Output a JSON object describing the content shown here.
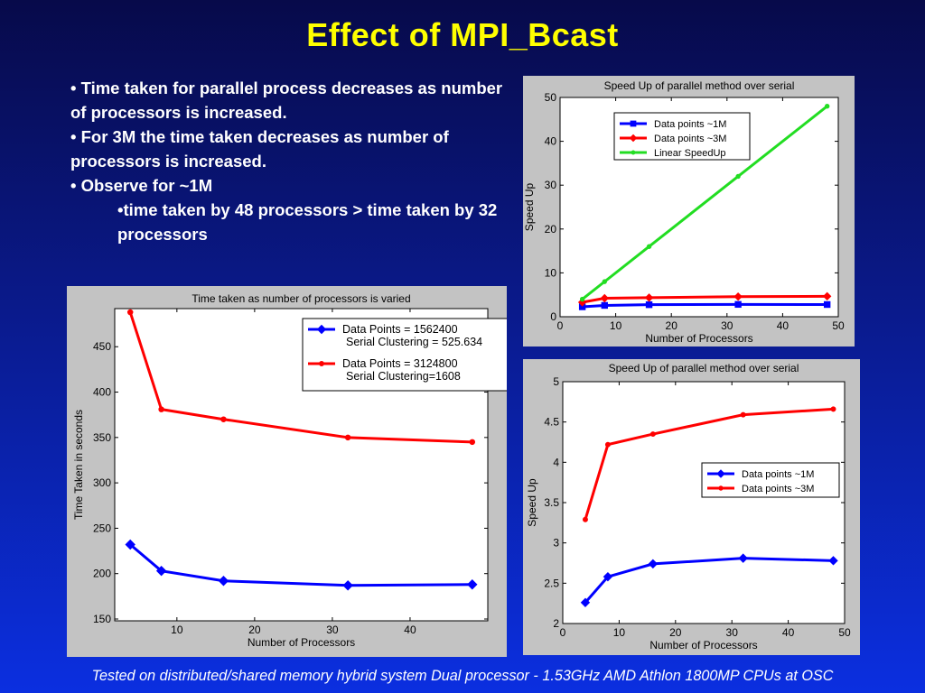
{
  "slide": {
    "title": "Effect of MPI_Bcast",
    "bullets": [
      "• Time taken for parallel process decreases as number of processors is increased.",
      "• For 3M the time taken decreases as number of processors is increased.",
      "• Observe for ~1M"
    ],
    "sub_bullet": "•time taken by 48 processors > time taken by 32 processors",
    "footer": "Tested on distributed/shared memory hybrid system Dual processor - 1.53GHz AMD Athlon 1800MP CPUs at OSC"
  },
  "chart_data": [
    {
      "id": "time-chart",
      "type": "line",
      "title": "Time taken as number of processors is varied",
      "xlabel": "Number of Processors",
      "ylabel": "Time Taken in seconds",
      "xlim": [
        2,
        50
      ],
      "ylim": [
        148,
        492
      ],
      "xticks": [
        10,
        20,
        30,
        40
      ],
      "yticks": [
        150,
        200,
        250,
        300,
        350,
        400,
        450
      ],
      "grid": false,
      "legend_position": "top-right",
      "legend": [
        {
          "series": 0,
          "lines": [
            "Data Points = 1562400",
            "Serial Clustering = 525.634"
          ]
        },
        {
          "series": 1,
          "lines": [
            "Data Points = 3124800",
            "Serial Clustering=1608"
          ]
        }
      ],
      "series": [
        {
          "name": "Data Points = 1562400",
          "color": "#0000ff",
          "marker": "diamond",
          "x": [
            4,
            8,
            16,
            32,
            48
          ],
          "y": [
            232,
            203,
            192,
            187,
            188
          ]
        },
        {
          "name": "Data Points = 3124800",
          "color": "#ff0000",
          "marker": "dot",
          "x": [
            4,
            8,
            16,
            32,
            48
          ],
          "y": [
            488,
            381,
            370,
            350,
            345
          ]
        }
      ]
    },
    {
      "id": "speedup-linear-chart",
      "type": "line",
      "title": "Speed Up of parallel method over serial",
      "xlabel": "Number of Processors",
      "ylabel": "Speed Up",
      "xlim": [
        0,
        50
      ],
      "ylim": [
        0,
        50
      ],
      "xticks": [
        0,
        10,
        20,
        30,
        40,
        50
      ],
      "yticks": [
        0,
        10,
        20,
        30,
        40,
        50
      ],
      "grid": false,
      "legend_position": "top-left",
      "legend": [
        {
          "series": 0,
          "lines": [
            "Data points ~1M"
          ]
        },
        {
          "series": 1,
          "lines": [
            "Data points ~3M"
          ]
        },
        {
          "series": 2,
          "lines": [
            "Linear SpeedUp"
          ]
        }
      ],
      "series": [
        {
          "name": "Data points ~1M",
          "color": "#0000ff",
          "marker": "square",
          "x": [
            4,
            8,
            16,
            32,
            48
          ],
          "y": [
            2.26,
            2.58,
            2.74,
            2.81,
            2.78
          ]
        },
        {
          "name": "Data points ~3M",
          "color": "#ff0000",
          "marker": "diamond",
          "x": [
            4,
            8,
            16,
            32,
            48
          ],
          "y": [
            3.29,
            4.22,
            4.35,
            4.59,
            4.66
          ]
        },
        {
          "name": "Linear SpeedUp",
          "color": "#22dd22",
          "marker": "dot",
          "x": [
            4,
            8,
            16,
            32,
            48
          ],
          "y": [
            4,
            8,
            16,
            32,
            48
          ]
        }
      ]
    },
    {
      "id": "speedup-zoom-chart",
      "type": "line",
      "title": "Speed Up of parallel method over serial",
      "xlabel": "Number of Processors",
      "ylabel": "Speed Up",
      "xlim": [
        0,
        50
      ],
      "ylim": [
        2,
        5
      ],
      "xticks": [
        0,
        10,
        20,
        30,
        40,
        50
      ],
      "yticks": [
        2,
        2.5,
        3,
        3.5,
        4,
        4.5,
        5
      ],
      "grid": false,
      "legend_position": "center-right",
      "legend": [
        {
          "series": 0,
          "lines": [
            "Data points ~1M"
          ]
        },
        {
          "series": 1,
          "lines": [
            "Data points ~3M"
          ]
        }
      ],
      "series": [
        {
          "name": "Data points ~1M",
          "color": "#0000ff",
          "marker": "diamond",
          "x": [
            4,
            8,
            16,
            32,
            48
          ],
          "y": [
            2.26,
            2.58,
            2.74,
            2.81,
            2.78
          ]
        },
        {
          "name": "Data points ~3M",
          "color": "#ff0000",
          "marker": "dot",
          "x": [
            4,
            8,
            16,
            32,
            48
          ],
          "y": [
            3.29,
            4.22,
            4.35,
            4.59,
            4.66
          ]
        }
      ]
    }
  ]
}
